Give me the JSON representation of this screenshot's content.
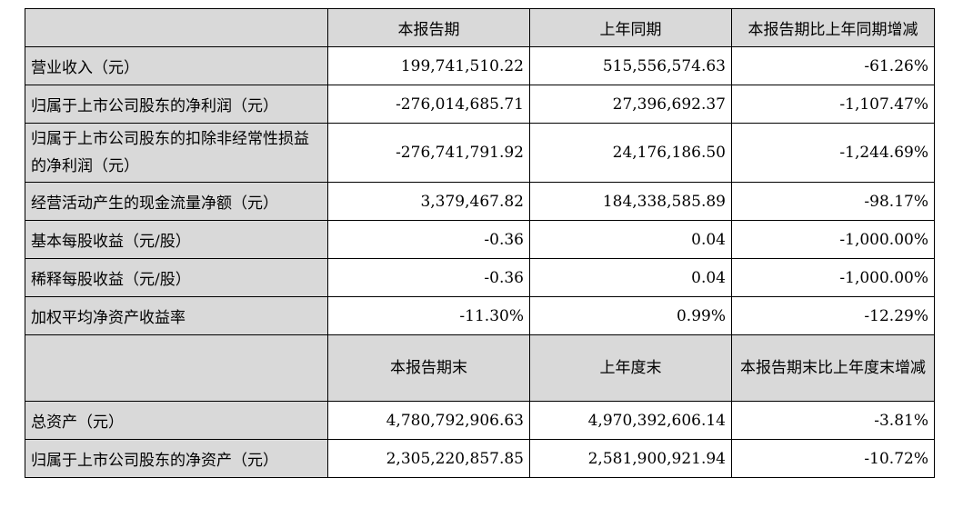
{
  "header1": [
    "",
    "本报告期",
    "上年同期",
    "本报告期比上年同期增减"
  ],
  "rows1": [
    {
      "label": "营业收入（元）",
      "cur": "199,741,510.22",
      "prev": "515,556,574.63",
      "chg": "-61.26%"
    },
    {
      "label": "归属于上市公司股东的净利润（元）",
      "cur": "-276,014,685.71",
      "prev": "27,396,692.37",
      "chg": "-1,107.47%"
    },
    {
      "label": "归属于上市公司股东的扣除非经常性损益的净利润（元）",
      "cur": "-276,741,791.92",
      "prev": "24,176,186.50",
      "chg": "-1,244.69%"
    },
    {
      "label": "经营活动产生的现金流量净额（元）",
      "cur": "3,379,467.82",
      "prev": "184,338,585.89",
      "chg": "-98.17%"
    },
    {
      "label": "基本每股收益（元/股）",
      "cur": "-0.36",
      "prev": "0.04",
      "chg": "-1,000.00%"
    },
    {
      "label": "稀释每股收益（元/股）",
      "cur": "-0.36",
      "prev": "0.04",
      "chg": "-1,000.00%"
    },
    {
      "label": "加权平均净资产收益率",
      "cur": "-11.30%",
      "prev": "0.99%",
      "chg": "-12.29%"
    }
  ],
  "header2": [
    "",
    "本报告期末",
    "上年度末",
    "本报告期末比上年度末增减"
  ],
  "rows2": [
    {
      "label": "总资产（元）",
      "cur": "4,780,792,906.63",
      "prev": "4,970,392,606.14",
      "chg": "-3.81%"
    },
    {
      "label": "归属于上市公司股东的净资产（元）",
      "cur": "2,305,220,857.85",
      "prev": "2,581,900,921.94",
      "chg": "-10.72%"
    }
  ]
}
